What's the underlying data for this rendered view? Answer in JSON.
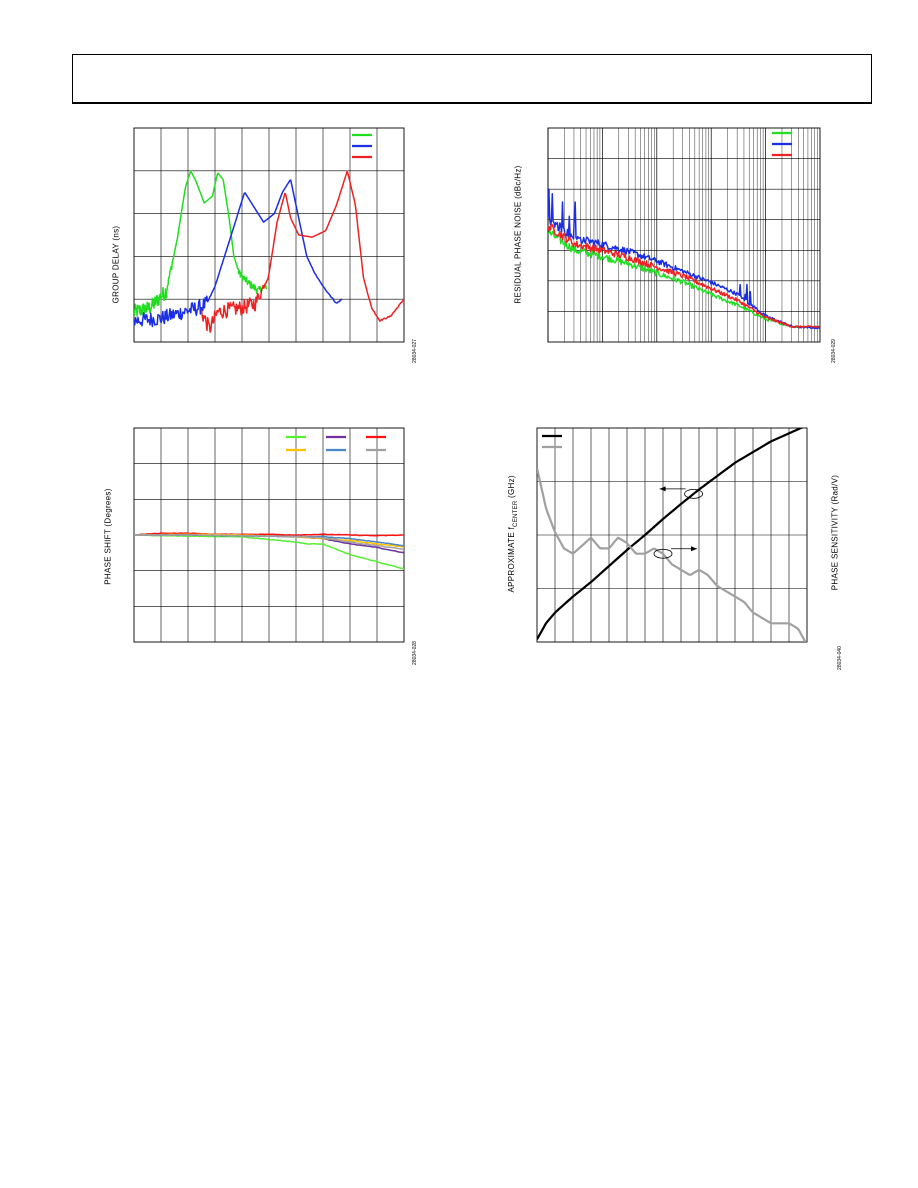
{
  "page": {
    "header": ""
  },
  "charts": [
    {
      "id": "group-delay",
      "ylabel": "GROUP DELAY (ns)",
      "figure_id": "28034-027",
      "chart_data": {
        "type": "line",
        "title": "",
        "xlabel": "",
        "ylabel": "GROUP DELAY (ns)",
        "xlim": [
          0,
          10
        ],
        "ylim": [
          0,
          5
        ],
        "grid": true,
        "xticks": [],
        "yticks": [],
        "legend_position": "top-right",
        "series": [
          {
            "name": "",
            "color": "#22dd22",
            "noisy": [
              0,
              5.0
            ],
            "x": [
              0,
              0.6,
              1.2,
              1.6,
              1.9,
              2.1,
              2.3,
              2.6,
              2.9,
              3.1,
              3.3,
              3.5,
              3.7,
              3.9,
              4.2,
              4.6,
              4.9
            ],
            "y": [
              0.7,
              0.8,
              1.2,
              2.4,
              3.6,
              4.0,
              3.75,
              3.25,
              3.4,
              3.95,
              3.8,
              3.0,
              2.0,
              1.6,
              1.4,
              1.2,
              1.3
            ]
          },
          {
            "name": "",
            "color": "#1a2ee6",
            "noisy": [
              0,
              2.7
            ],
            "x": [
              0,
              1,
              1.8,
              2.4,
              2.7,
              3.0,
              3.4,
              3.8,
              4.1,
              4.4,
              4.8,
              5.2,
              5.5,
              5.8,
              6.1,
              6.4,
              6.7,
              7.0,
              7.5,
              7.7
            ],
            "y": [
              0.5,
              0.55,
              0.7,
              0.8,
              0.9,
              1.3,
              2.1,
              2.9,
              3.5,
              3.2,
              2.8,
              3.0,
              3.5,
              3.8,
              2.9,
              2.0,
              1.6,
              1.3,
              0.9,
              1.0
            ]
          },
          {
            "name": "",
            "color": "#ee2222",
            "noisy": [
              2.4,
              5.0
            ],
            "x": [
              2.5,
              2.8,
              3.1,
              3.5,
              4.0,
              4.5,
              5.0,
              5.3,
              5.6,
              5.8,
              6.1,
              6.6,
              7.1,
              7.5,
              7.9,
              8.2,
              8.5,
              8.8,
              9.1,
              9.5,
              10
            ],
            "y": [
              0.7,
              0.3,
              0.7,
              0.75,
              0.8,
              0.9,
              1.6,
              2.8,
              3.5,
              2.9,
              2.5,
              2.45,
              2.6,
              3.2,
              4.0,
              3.2,
              1.5,
              0.8,
              0.5,
              0.6,
              1.0
            ]
          }
        ]
      }
    },
    {
      "id": "residual-phase-noise",
      "ylabel": "RESIDUAL PHASE NOISE (dBc/Hz)",
      "figure_id": "28034-029",
      "chart_data": {
        "type": "line",
        "title": "",
        "xlabel": "",
        "ylabel": "RESIDUAL PHASE NOISE (dBc/Hz)",
        "xscale": "log",
        "xlim": [
          0,
          5
        ],
        "ylim": [
          0,
          7
        ],
        "grid": true,
        "xticks": [],
        "yticks": [],
        "legend_position": "top-right",
        "series": [
          {
            "name": "",
            "color": "#22dd22",
            "x": [
              0,
              0.5,
              1,
              1.5,
              2,
              2.5,
              3,
              3.5,
              4,
              4.5,
              5
            ],
            "y": [
              3.6,
              3.0,
              2.8,
              2.55,
              2.25,
              1.95,
              1.55,
              1.2,
              0.75,
              0.5,
              0.5
            ]
          },
          {
            "name": "",
            "color": "#1a2ee6",
            "x": [
              0,
              0.5,
              1,
              1.5,
              2,
              2.5,
              3,
              3.5,
              4,
              4.5,
              5
            ],
            "y": [
              4.0,
              3.4,
              3.2,
              2.95,
              2.65,
              2.3,
              1.95,
              1.55,
              0.85,
              0.5,
              0.45
            ]
          },
          {
            "name": "",
            "color": "#ee2222",
            "x": [
              0,
              0.5,
              1,
              1.5,
              2,
              2.5,
              3,
              3.5,
              4,
              4.5,
              5
            ],
            "y": [
              3.8,
              3.2,
              3.0,
              2.75,
              2.45,
              2.15,
              1.75,
              1.35,
              0.8,
              0.5,
              0.5
            ]
          }
        ]
      }
    },
    {
      "id": "phase-shift",
      "ylabel": "PHASE SHIFT (Degrees)",
      "figure_id": "28034-028",
      "chart_data": {
        "type": "line",
        "title": "",
        "xlabel": "",
        "ylabel": "PHASE SHIFT (Degrees)",
        "xlim": [
          0,
          10
        ],
        "ylim": [
          -3,
          3
        ],
        "grid": true,
        "xticks": [],
        "yticks": [],
        "legend_position": "top-right",
        "series": [
          {
            "name": "",
            "color": "#55ee33",
            "x": [
              0,
              2,
              4,
              6,
              6.5,
              7,
              8,
              9,
              10
            ],
            "y": [
              0,
              -0.03,
              -0.05,
              -0.2,
              -0.25,
              -0.25,
              -0.55,
              -0.75,
              -0.95
            ]
          },
          {
            "name": "",
            "color": "#7030a0",
            "x": [
              0,
              2,
              4,
              6,
              7,
              8,
              9,
              10
            ],
            "y": [
              0,
              0,
              -0.02,
              -0.05,
              -0.1,
              -0.25,
              -0.35,
              -0.5
            ]
          },
          {
            "name": "",
            "color": "#ff1111",
            "x": [
              0,
              1,
              2,
              3,
              4,
              5,
              6,
              7,
              8,
              9,
              10
            ],
            "y": [
              0,
              0.05,
              0.05,
              0.02,
              0.02,
              0.02,
              0.0,
              0.02,
              0.0,
              -0.02,
              0
            ]
          },
          {
            "name": "",
            "color": "#ffc000",
            "x": [
              0,
              2,
              4,
              6,
              7,
              8,
              9,
              10
            ],
            "y": [
              0,
              0.02,
              0,
              -0.05,
              -0.1,
              -0.15,
              -0.25,
              -0.33
            ]
          },
          {
            "name": "",
            "color": "#4a86c8",
            "x": [
              0,
              2,
              4,
              6,
              7,
              8,
              9,
              10
            ],
            "y": [
              0,
              0,
              -0.02,
              -0.04,
              -0.05,
              -0.1,
              -0.2,
              -0.3
            ]
          },
          {
            "name": "",
            "color": "#a0a0a0",
            "x": [
              0,
              2,
              4,
              6,
              7,
              8,
              9,
              10
            ],
            "y": [
              0,
              0,
              -0.02,
              -0.04,
              -0.08,
              -0.2,
              -0.3,
              -0.4
            ]
          }
        ]
      }
    },
    {
      "id": "fcenter-sensitivity",
      "ylabel": "APPROXIMATE f",
      "ylabel_sub": "CENTER",
      "ylabel_tail": " (GHz)",
      "ylabel_right": "PHASE SENSITIVITY (Rad/V)",
      "figure_id": "28034-040",
      "chart_data": {
        "type": "line",
        "title": "",
        "xlabel": "",
        "ylabel": "APPROXIMATE fCENTER (GHz)",
        "ylabel_right": "PHASE SENSITIVITY (Rad/V)",
        "xlim": [
          0,
          15
        ],
        "ylim": [
          0,
          4
        ],
        "grid": true,
        "xticks": [],
        "yticks": [],
        "legend_position": "top-left",
        "series": [
          {
            "name": "",
            "color": "#000000",
            "axis": "left",
            "x": [
              0,
              0.5,
              1,
              2,
              3,
              4,
              5,
              6,
              7,
              8,
              9,
              10,
              11,
              12,
              13,
              14,
              15
            ],
            "y": [
              0.05,
              0.35,
              0.55,
              0.85,
              1.12,
              1.42,
              1.72,
              2.0,
              2.3,
              2.58,
              2.85,
              3.1,
              3.35,
              3.55,
              3.75,
              3.9,
              4.05
            ]
          },
          {
            "name": "",
            "color": "#a0a0a0",
            "axis": "right",
            "x": [
              0,
              0.5,
              1,
              1.5,
              2,
              2.5,
              3,
              3.5,
              4,
              4.5,
              5,
              5.5,
              6,
              6.5,
              7,
              7.5,
              8,
              8.5,
              9,
              9.5,
              10,
              10.5,
              11,
              11.5,
              12,
              12.5,
              13,
              13.5,
              14,
              14.5,
              15
            ],
            "y": [
              3.25,
              2.5,
              2.05,
              1.75,
              1.65,
              1.8,
              1.95,
              1.75,
              1.75,
              1.95,
              1.85,
              1.65,
              1.65,
              1.75,
              1.65,
              1.45,
              1.35,
              1.25,
              1.35,
              1.25,
              1.05,
              0.95,
              0.85,
              0.75,
              0.55,
              0.45,
              0.35,
              0.35,
              0.35,
              0.25,
              -0.05
            ]
          }
        ],
        "annotations": [
          {
            "type": "ellipse-arrow",
            "series": 0,
            "at_x": 8.7,
            "direction": "left"
          },
          {
            "type": "ellipse-arrow",
            "series": 1,
            "at_x": 7.0,
            "direction": "right"
          }
        ]
      }
    }
  ]
}
